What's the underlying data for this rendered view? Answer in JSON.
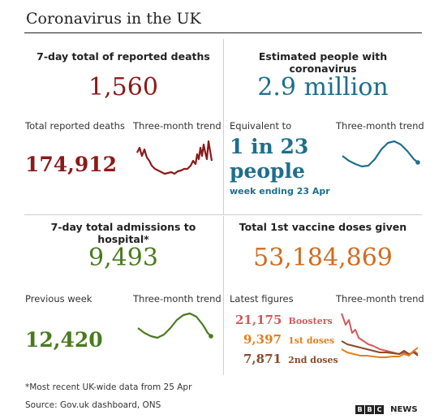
{
  "title": "Coronavirus in the UK",
  "deaths": {
    "heading": "7-day total of reported deaths",
    "value": "1,560",
    "total_label": "Total reported deaths",
    "trend_label": "Three-month trend",
    "total_value": "174,912",
    "color": "#8b1a1a"
  },
  "infections": {
    "heading": "Estimated people with coronavirus",
    "value": "2.9 million",
    "equiv_label": "Equivalent to",
    "trend_label": "Three-month trend",
    "ratio_line1": "1 in 23",
    "ratio_line2": "people",
    "week_note": "week ending 23 Apr",
    "color": "#1f6e8c"
  },
  "admissions": {
    "heading": "7-day total admissions to hospital*",
    "value": "9,493",
    "prev_label": "Previous week",
    "trend_label": "Three-month trend",
    "prev_value": "12,420",
    "color": "#4a7a1e"
  },
  "vaccines": {
    "heading": "Total 1st vaccine doses given",
    "value": "53,184,869",
    "latest_label": "Latest figures",
    "trend_label": "Three-month trend",
    "boosters_value": "21,175",
    "boosters_label": "Boosters",
    "first_value": "9,397",
    "first_label": "1st doses",
    "second_value": "7,871",
    "second_label": "2nd doses",
    "color": "#d26b1e",
    "boosters_color": "#d15a5a",
    "first_color": "#e08020",
    "second_color": "#8a4a2a"
  },
  "footnote": "*Most recent UK-wide data from 25 Apr",
  "source": "Source: Gov.uk dashboard, ONS",
  "logo": {
    "b1": "B",
    "b2": "B",
    "c": "C",
    "news": "NEWS"
  }
}
